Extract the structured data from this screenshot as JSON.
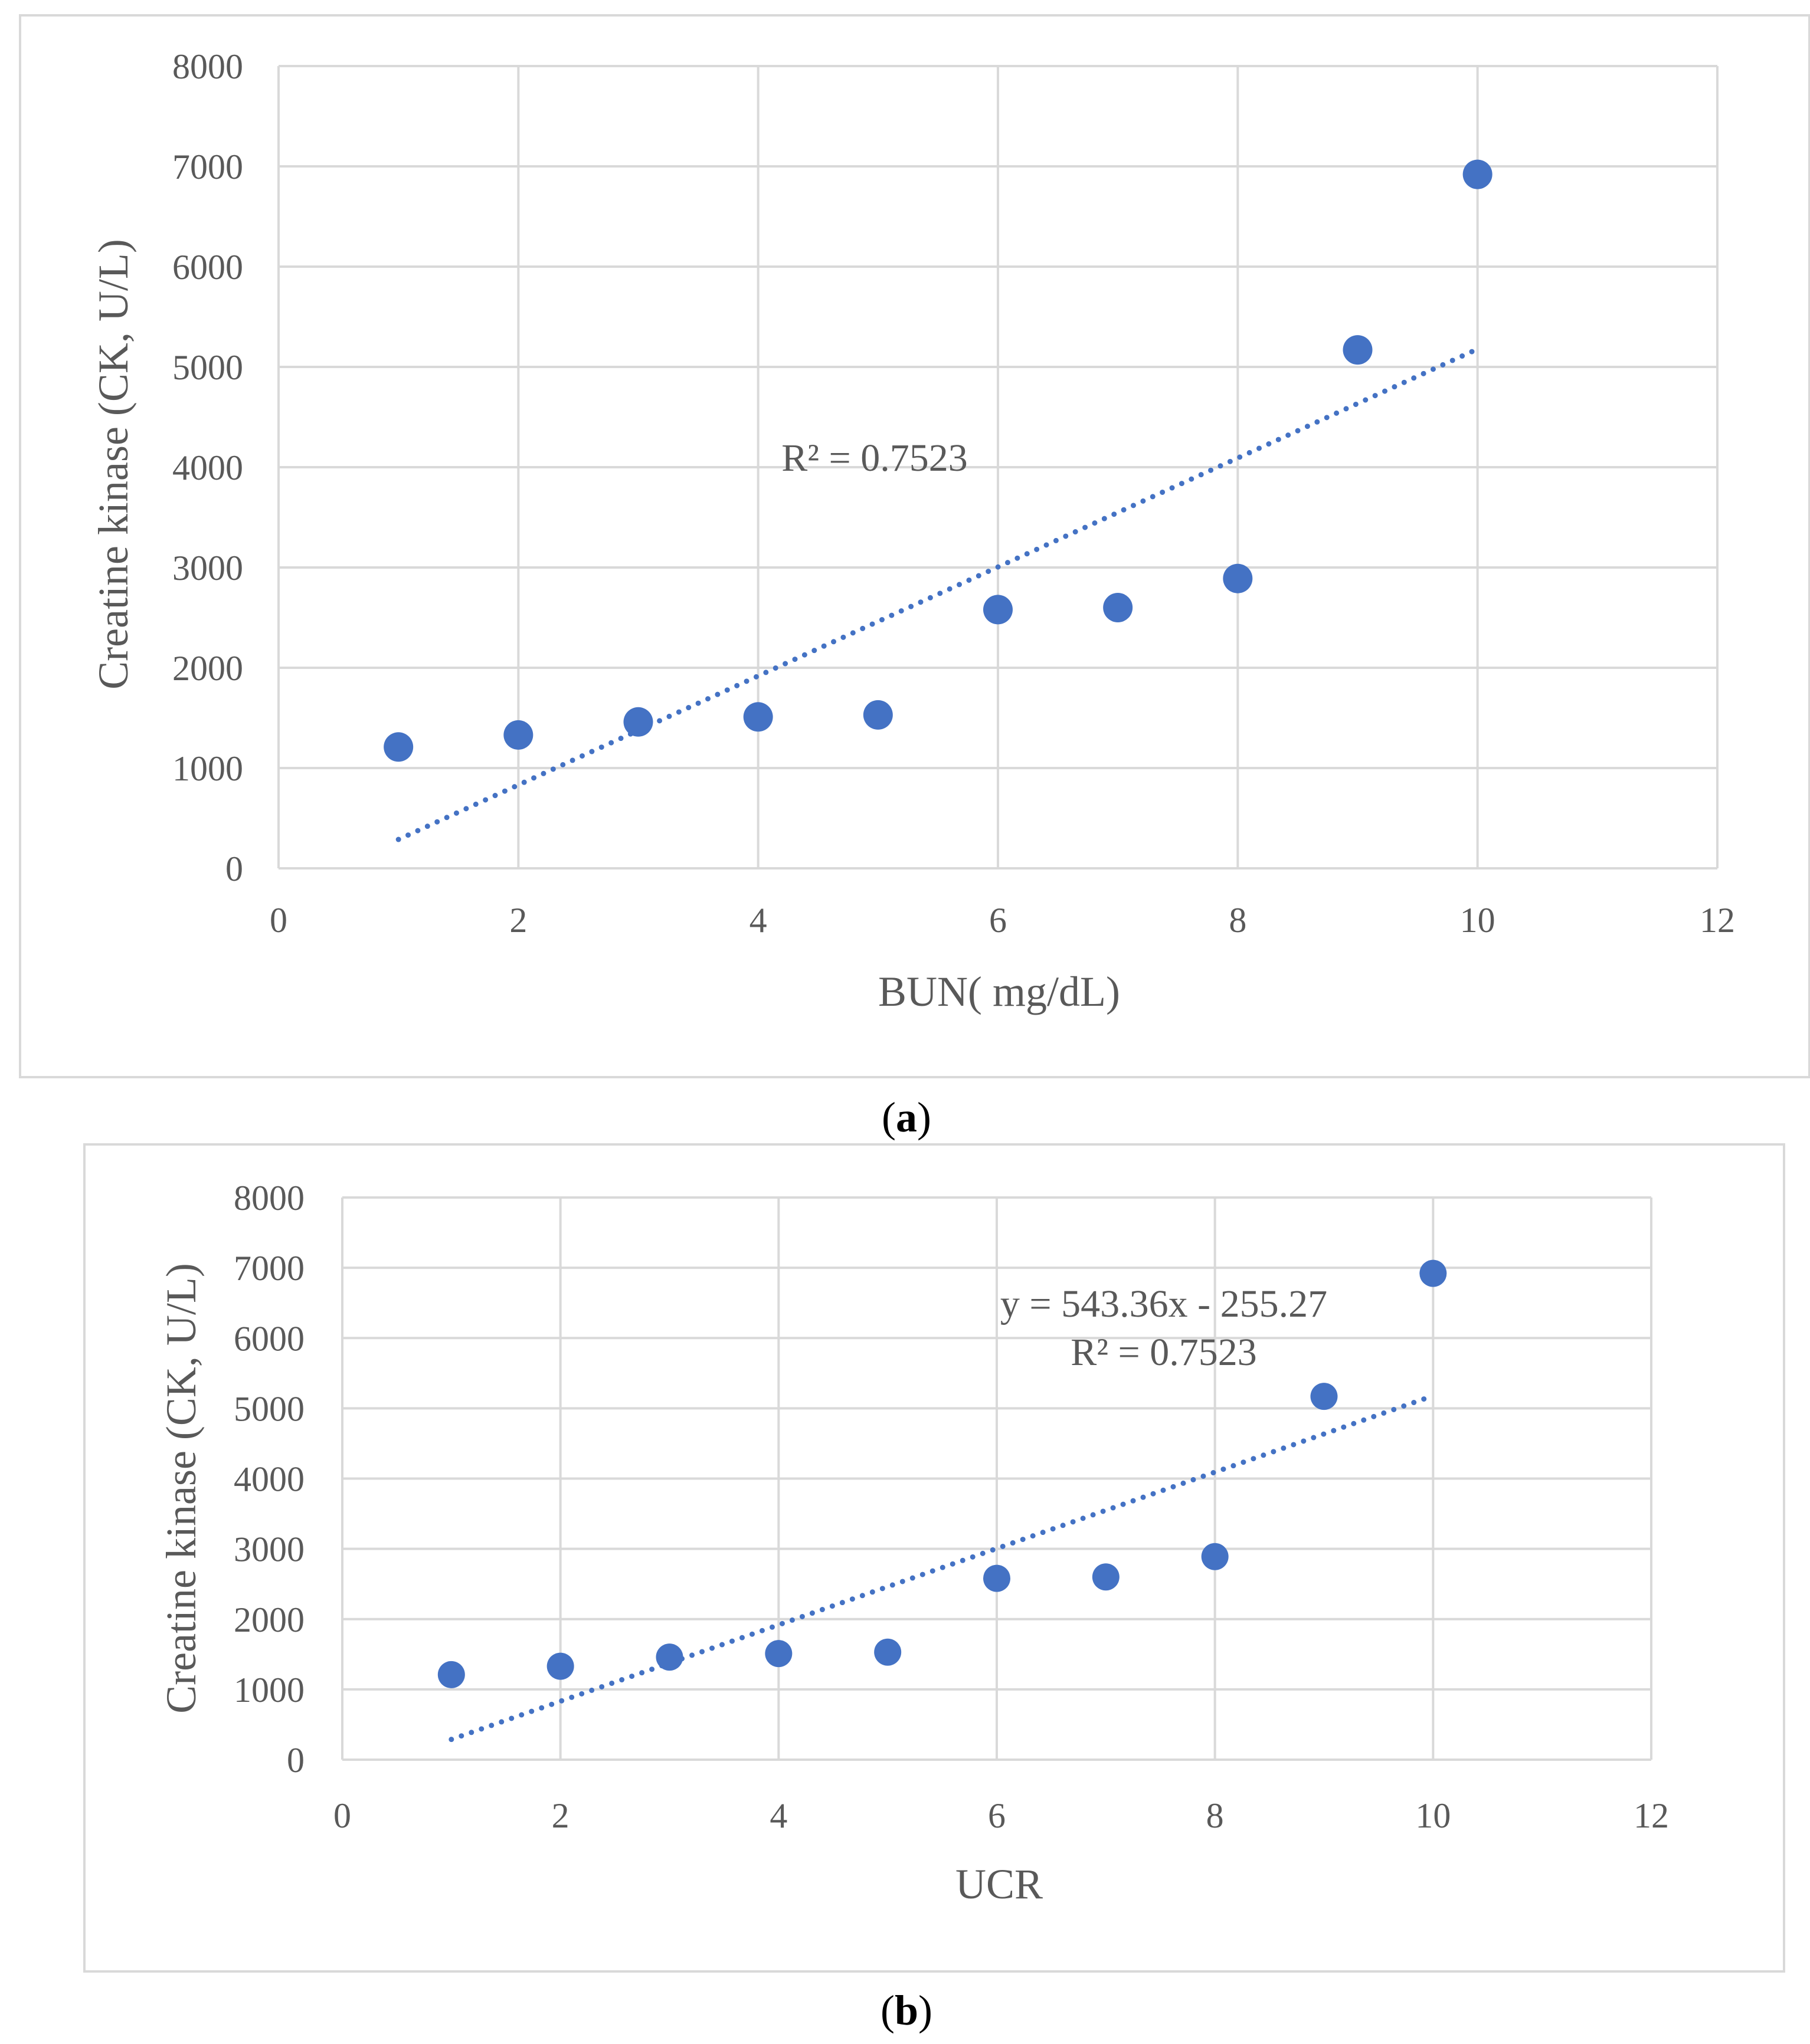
{
  "colors": {
    "marker": "#4472C4",
    "trendline": "#4472C4",
    "grid": "#D9D9D9",
    "text": "#595959",
    "frame": "#D9D9D9"
  },
  "chart_data": [
    {
      "type": "scatter",
      "panel_label": "a",
      "xlabel": "BUN( mg/dL)",
      "ylabel": "Creatine kinase (CK, U/L)",
      "xlim": [
        0,
        12
      ],
      "ylim": [
        0,
        8000
      ],
      "x_ticks": [
        "0",
        "2",
        "4",
        "6",
        "8",
        "10",
        "12"
      ],
      "y_ticks": [
        "0",
        "1000",
        "2000",
        "3000",
        "4000",
        "5000",
        "6000",
        "7000",
        "8000"
      ],
      "grid": true,
      "series": [
        {
          "name": "CK",
          "x": [
            1,
            2,
            3,
            4,
            5,
            6,
            7,
            8,
            9,
            10
          ],
          "y": [
            1210,
            1330,
            1460,
            1510,
            1530,
            2580,
            2600,
            2890,
            5170,
            6920
          ]
        }
      ],
      "trendline": {
        "type": "linear",
        "slope": 543.36,
        "intercept": -255.27,
        "x_range": [
          1,
          10
        ],
        "style": "dotted"
      },
      "annotations": [
        "R² = 0.7523"
      ]
    },
    {
      "type": "scatter",
      "panel_label": "b",
      "xlabel": "UCR",
      "ylabel": "Creatine kinase (CK, U/L)",
      "xlim": [
        0,
        12
      ],
      "ylim": [
        0,
        8000
      ],
      "x_ticks": [
        "0",
        "2",
        "4",
        "6",
        "8",
        "10",
        "12"
      ],
      "y_ticks": [
        "0",
        "1000",
        "2000",
        "3000",
        "4000",
        "5000",
        "6000",
        "7000",
        "8000"
      ],
      "grid": true,
      "series": [
        {
          "name": "CK",
          "x": [
            1,
            2,
            3,
            4,
            5,
            6,
            7,
            8,
            9,
            10
          ],
          "y": [
            1210,
            1330,
            1460,
            1510,
            1530,
            2580,
            2600,
            2890,
            5170,
            6920
          ]
        }
      ],
      "trendline": {
        "type": "linear",
        "slope": 543.36,
        "intercept": -255.27,
        "x_range": [
          1,
          10
        ],
        "style": "dotted"
      },
      "annotations": [
        "y = 543.36x - 255.27",
        "R² = 0.7523"
      ]
    }
  ]
}
